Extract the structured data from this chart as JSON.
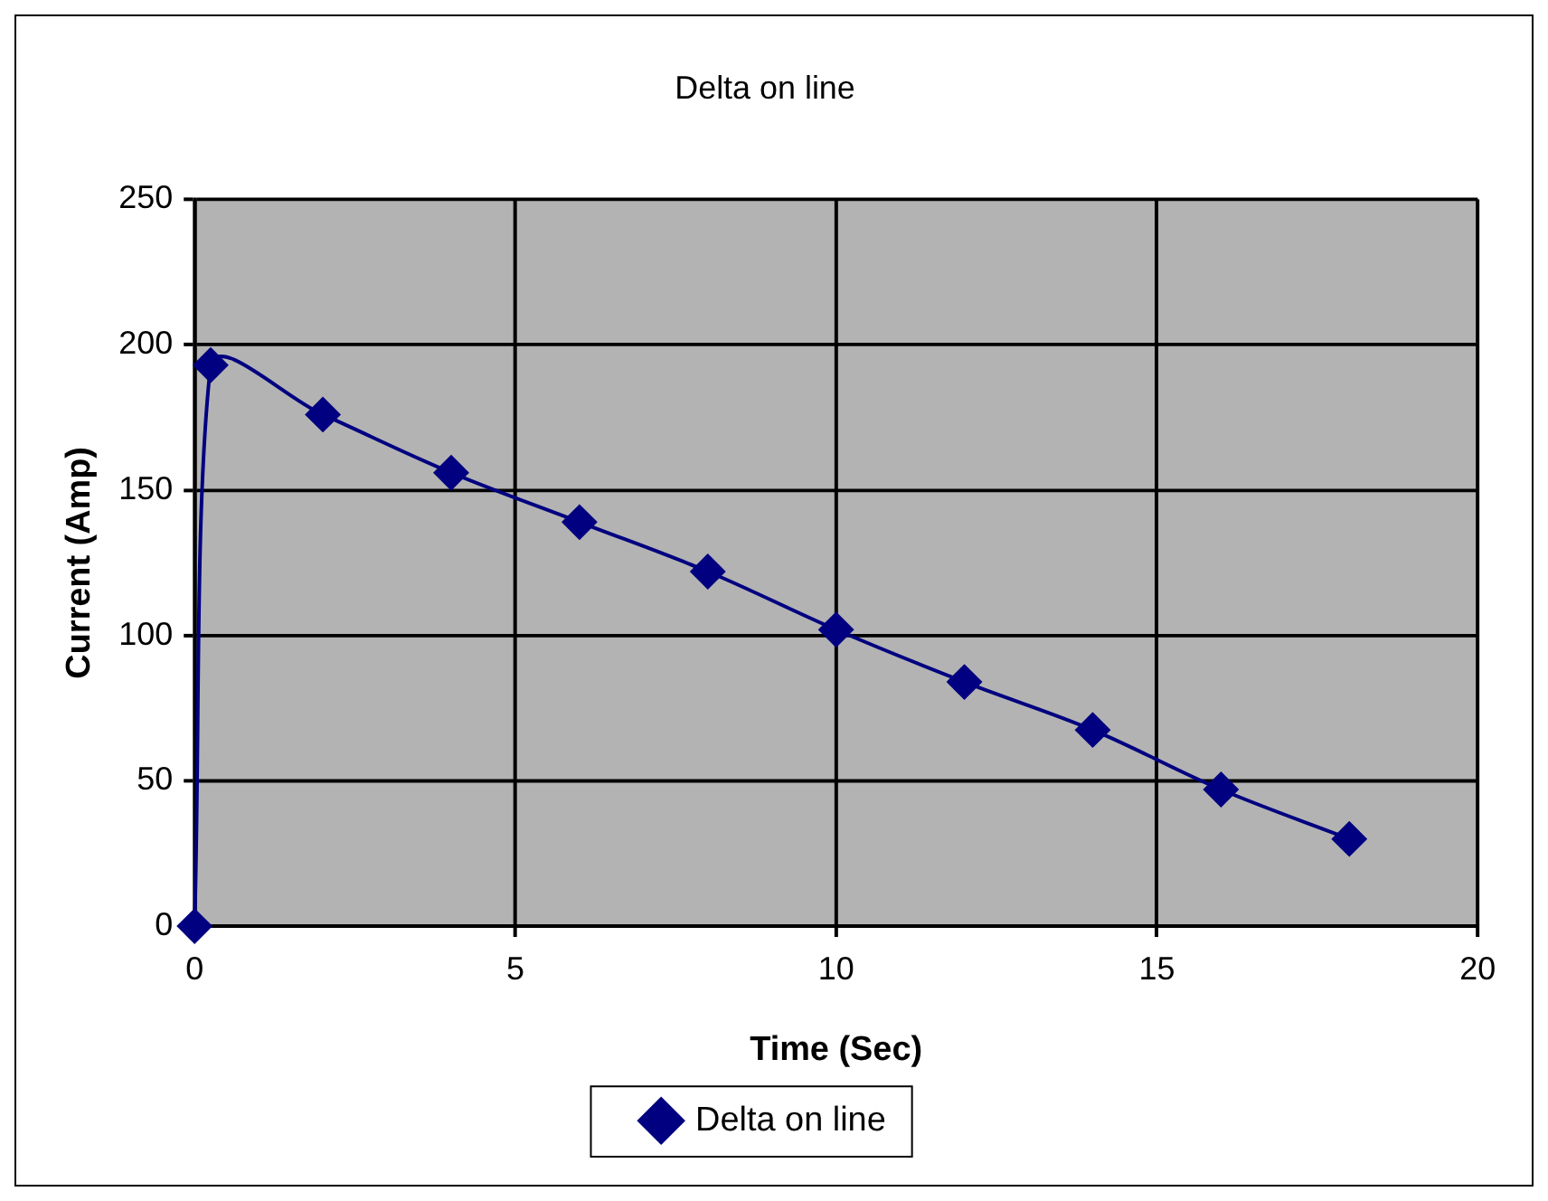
{
  "chart_data": {
    "type": "line",
    "title": "Delta on line",
    "xlabel": "Time (Sec)",
    "ylabel": "Current (Amp)",
    "x": [
      0,
      0.25,
      2,
      4,
      6,
      8,
      10,
      12,
      14,
      16,
      18
    ],
    "series": [
      {
        "name": "Delta on line",
        "color": "#000080",
        "values": [
          0,
          193,
          176,
          156,
          139,
          122,
          102,
          84,
          67.5,
          47,
          30
        ]
      }
    ],
    "xlim": [
      0,
      20
    ],
    "xticks": [
      0,
      5,
      10,
      15,
      20
    ],
    "ylim": [
      0,
      250
    ],
    "yticks": [
      0,
      50,
      100,
      150,
      200,
      250
    ],
    "grid": true,
    "legend": "bottom",
    "marker": "diamond",
    "line_style": "solid"
  }
}
